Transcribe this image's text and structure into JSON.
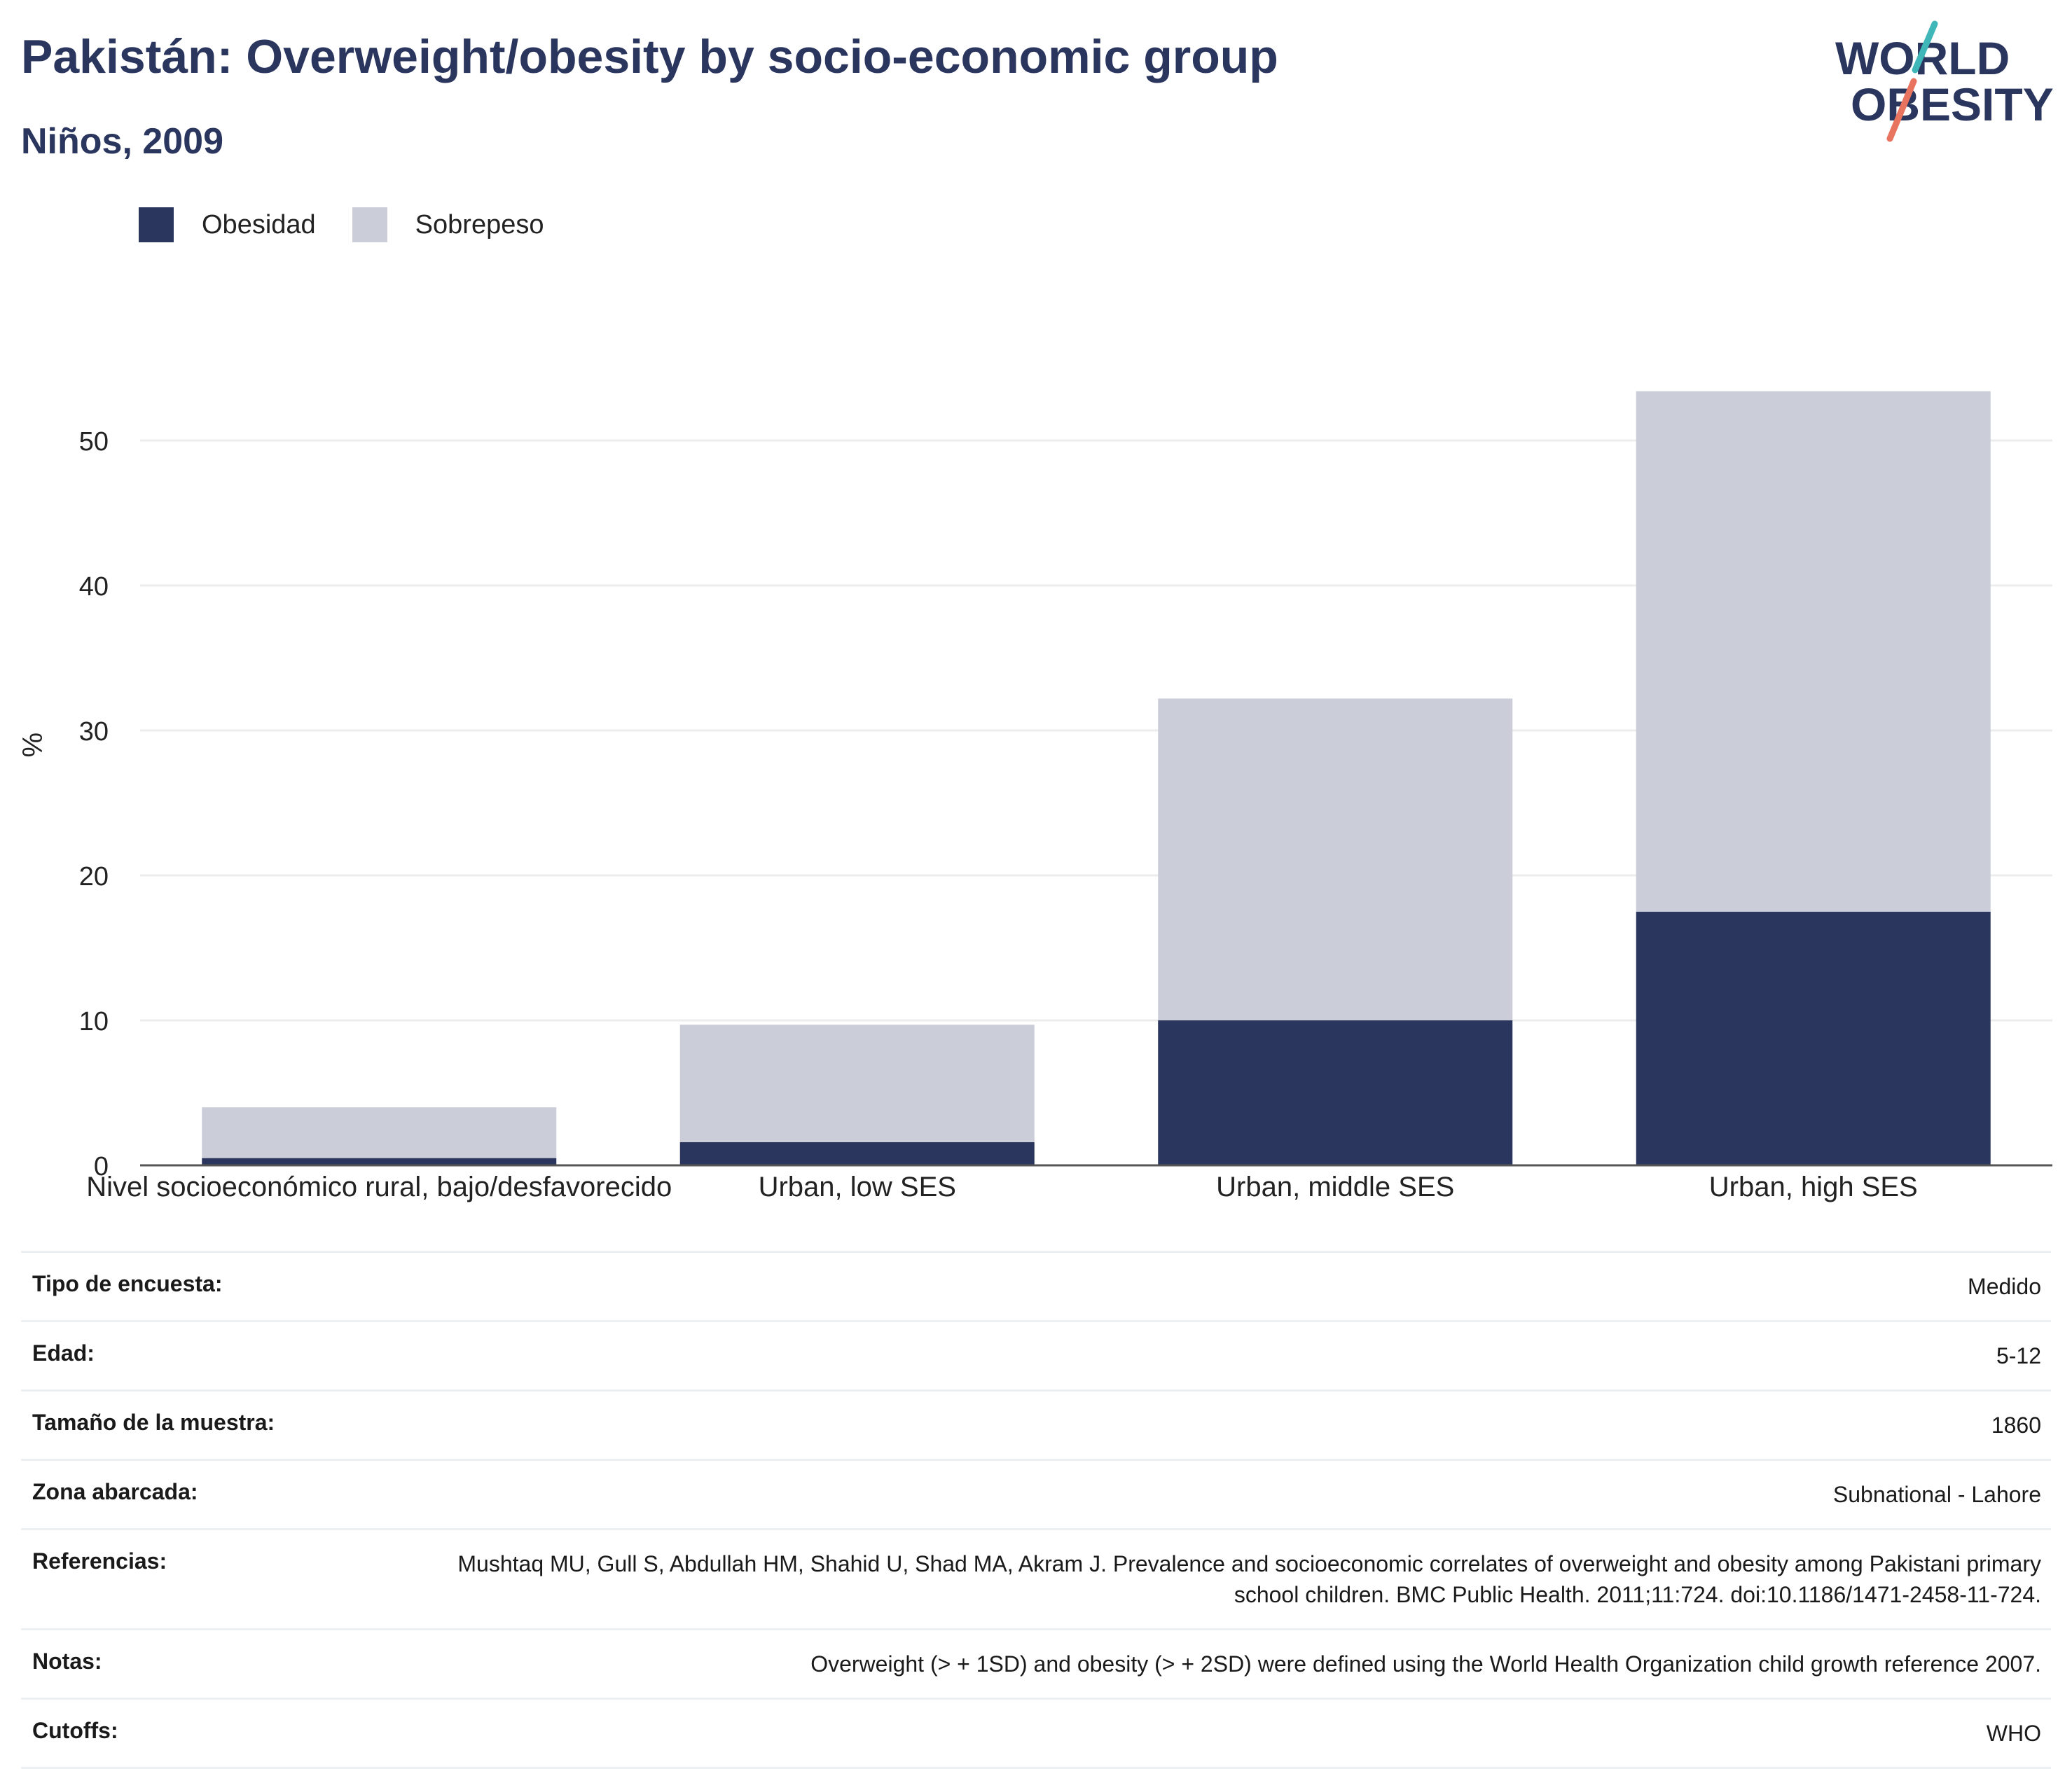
{
  "header": {
    "title": "Pakistán: Overweight/obesity by socio-economic group",
    "subtitle": "Niños, 2009"
  },
  "logo": {
    "line1": "WORLD",
    "line2": "OBESITY",
    "accent_teal": "#3fb6b8",
    "accent_coral": "#e8735f",
    "text_color": "#2b365f"
  },
  "legend": {
    "items": [
      {
        "label": "Obesidad",
        "color": "#2b365f"
      },
      {
        "label": "Sobrepeso",
        "color": "#cbcdd9"
      }
    ]
  },
  "chart_data": {
    "type": "bar",
    "stacked": true,
    "categories": [
      "Nivel socioeconómico rural, bajo/desfavorecido",
      "Urban, low SES",
      "Urban, middle SES",
      "Urban, high SES"
    ],
    "series": [
      {
        "name": "Obesidad",
        "color": "#2b365f",
        "values": [
          0.5,
          1.6,
          10.0,
          17.5
        ]
      },
      {
        "name": "Sobrepeso",
        "color": "#cbcdd9",
        "values": [
          3.5,
          8.1,
          22.2,
          35.9
        ]
      }
    ],
    "ylabel": "%",
    "yticks": [
      0,
      10,
      20,
      30,
      40,
      50
    ],
    "ylim": [
      0,
      57
    ],
    "grid": true,
    "legend_position": "top-left"
  },
  "info": {
    "rows": [
      {
        "label": "Tipo de encuesta:",
        "value": "Medido"
      },
      {
        "label": "Edad:",
        "value": "5-12"
      },
      {
        "label": "Tamaño de la muestra:",
        "value": "1860"
      },
      {
        "label": "Zona abarcada:",
        "value": "Subnational - Lahore"
      },
      {
        "label": "Referencias:",
        "value": "Mushtaq MU, Gull S, Abdullah HM, Shahid U, Shad MA, Akram J. Prevalence and socioeconomic correlates of overweight and obesity among Pakistani primary school children. BMC Public Health. 2011;11:724. doi:10.1186/1471-2458-11-724."
      },
      {
        "label": "Notas:",
        "value": "Overweight (> + 1SD) and obesity (> + 2SD) were defined using the World Health Organization child growth reference 2007."
      },
      {
        "label": "Cutoffs:",
        "value": "WHO"
      }
    ]
  }
}
